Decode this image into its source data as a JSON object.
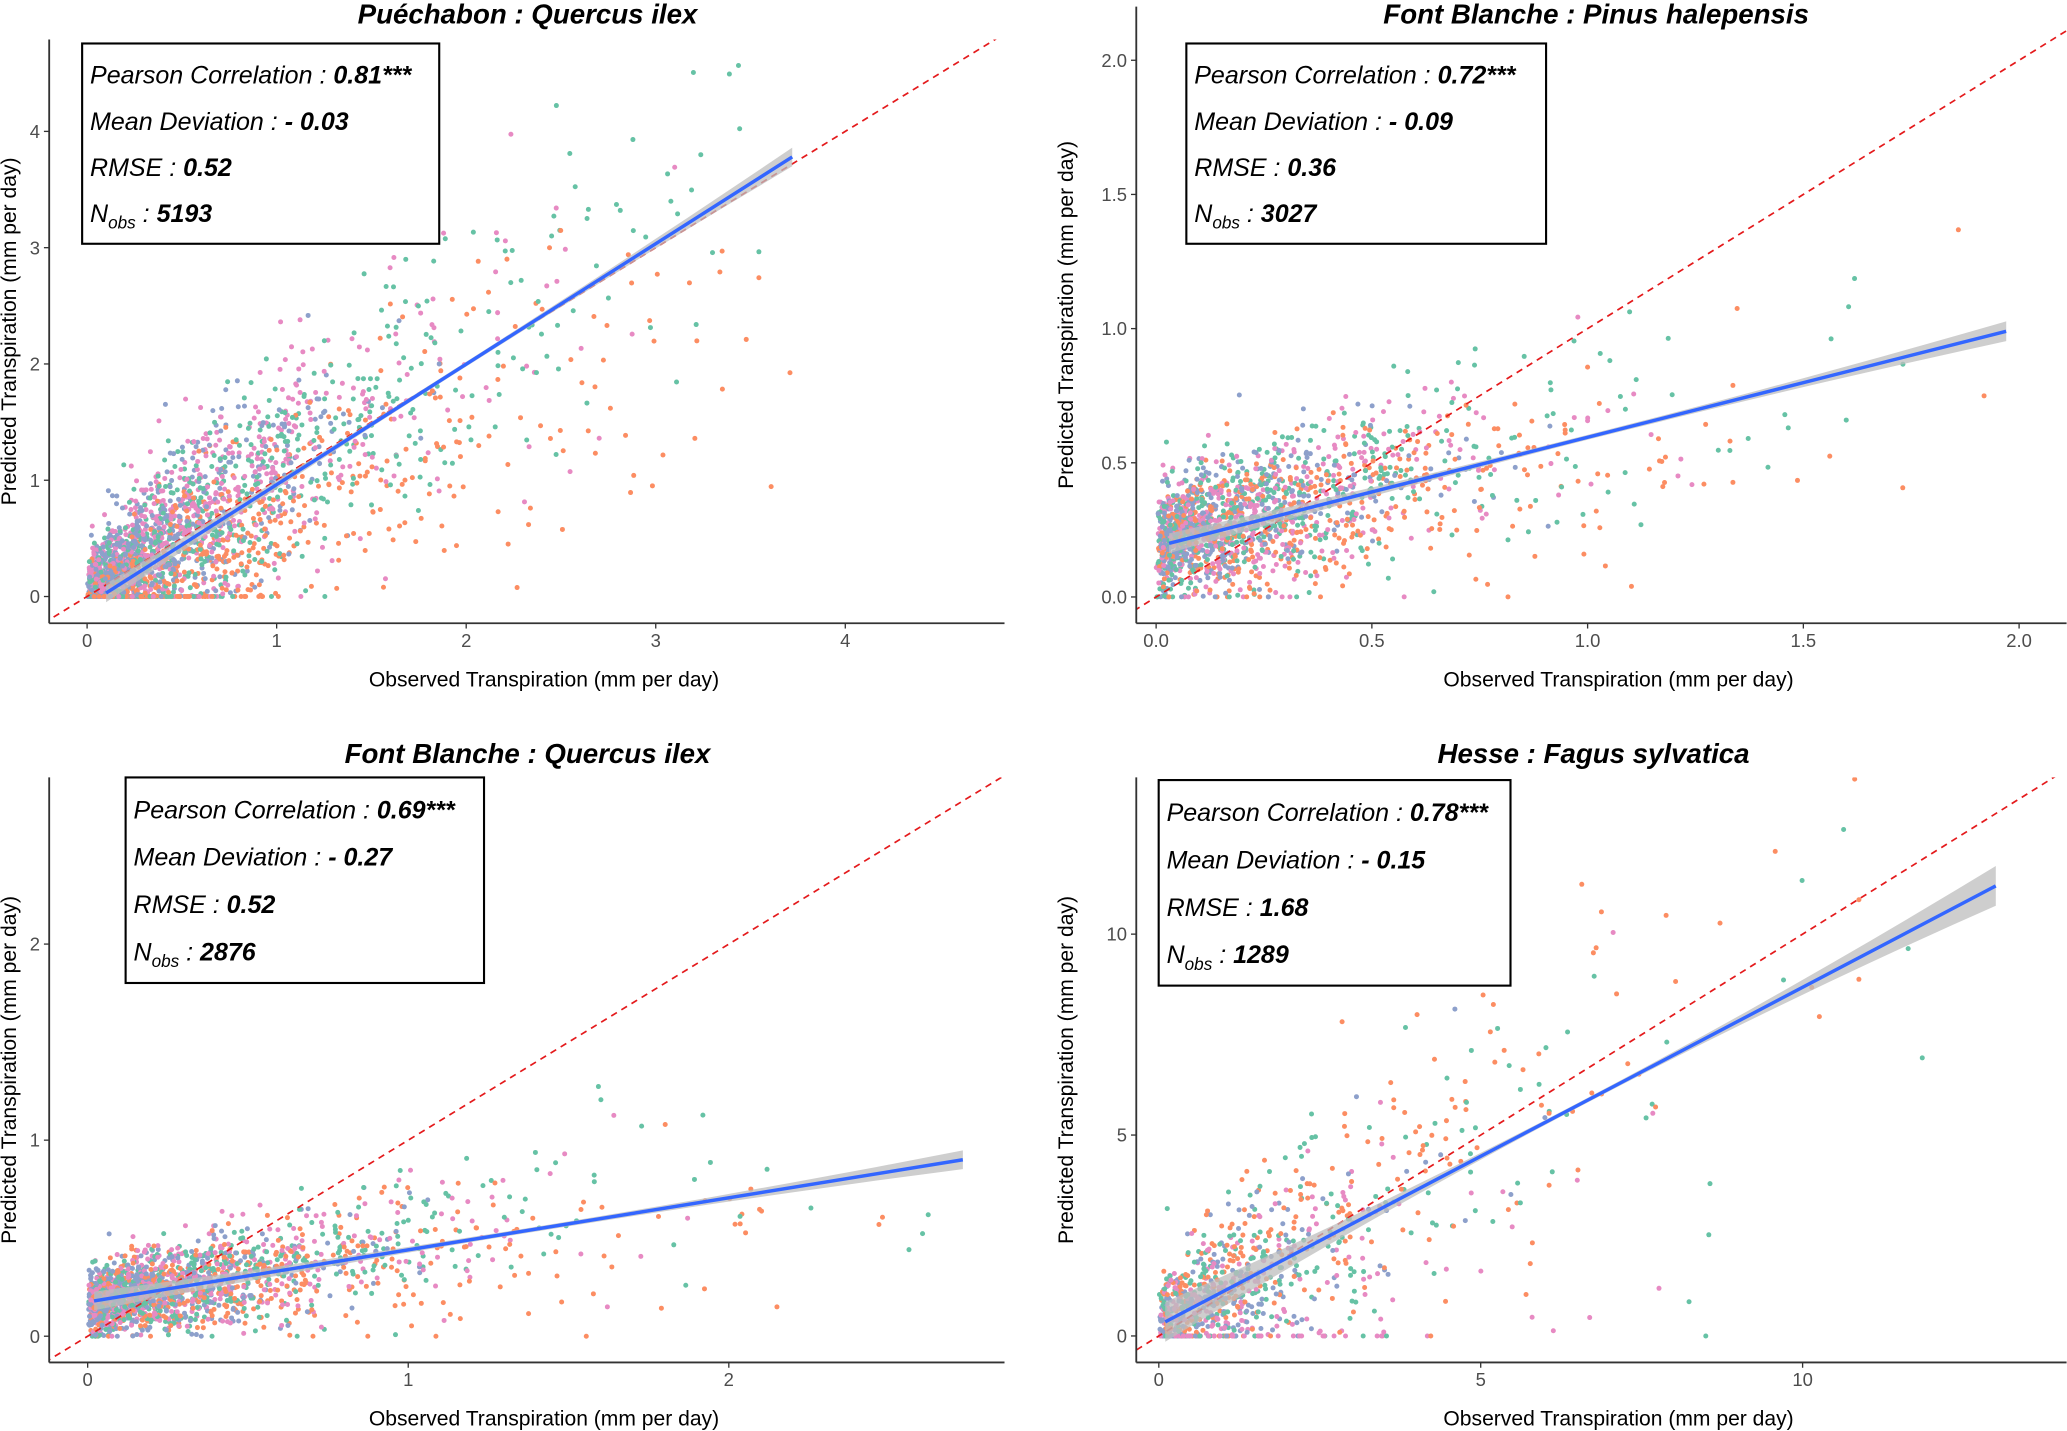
{
  "chart_data": [
    {
      "type": "scatter",
      "title": "Puéchabon : Quercus ilex",
      "xlabel": "Observed Transpiration (mm per day)",
      "ylabel": "Predicted Transpiration (mm per day)",
      "xlim": [
        -0.2,
        4.84
      ],
      "ylim": [
        -0.23,
        4.79
      ],
      "xticks": [
        "0",
        "1",
        "2",
        "3",
        "4"
      ],
      "xtick_values": [
        0,
        1,
        2,
        3,
        4
      ],
      "yticks": [
        "0",
        "1",
        "2",
        "3",
        "4"
      ],
      "ytick_values": [
        0,
        1,
        2,
        3,
        4
      ],
      "regression": {
        "x": [
          0.1,
          3.72
        ],
        "y": [
          0.03,
          3.78
        ]
      },
      "identity_line": true,
      "stats": {
        "pearson_label": "Pearson Correlation : ",
        "pearson": "0.81***",
        "md_label": "Mean Deviation : ",
        "md": "- 0.03",
        "rmse_label": "RMSE : ",
        "rmse": "0.52",
        "n_label": "N",
        "n_sub": "obs",
        "n_sep": " : ",
        "nobs": "5193"
      }
    },
    {
      "type": "scatter",
      "title": "Font Blanche : Pinus halepensis",
      "xlabel": "Observed Transpiration (mm per day)",
      "ylabel": "Predicted Transpiration (mm per day)",
      "xlim": [
        -0.046,
        2.11
      ],
      "ylim": [
        -0.098,
        2.2
      ],
      "xticks": [
        "0.0",
        "0.5",
        "1.0",
        "1.5",
        "2.0"
      ],
      "xtick_values": [
        0,
        0.5,
        1,
        1.5,
        2
      ],
      "yticks": [
        "0.0",
        "0.5",
        "1.0",
        "1.5",
        "2.0"
      ],
      "ytick_values": [
        0,
        0.5,
        1,
        1.5,
        2
      ],
      "regression": {
        "x": [
          0.03,
          1.97
        ],
        "y": [
          0.2,
          0.99
        ]
      },
      "identity_line": true,
      "stats": {
        "pearson_label": "Pearson Correlation : ",
        "pearson": "0.72***",
        "md_label": "Mean Deviation : ",
        "md": "- 0.09",
        "rmse_label": "RMSE : ",
        "rmse": "0.36",
        "n_label": "N",
        "n_sub": "obs",
        "n_sep": " : ",
        "nobs": "3027"
      }
    },
    {
      "type": "scatter",
      "title": "Font Blanche : Quercus ilex",
      "xlabel": "Observed Transpiration (mm per day)",
      "ylabel": "Predicted Transpiration (mm per day)",
      "xlim": [
        -0.12,
        2.86
      ],
      "ylim": [
        -0.134,
        2.85
      ],
      "xticks": [
        "0",
        "1",
        "2"
      ],
      "xtick_values": [
        0,
        1,
        2
      ],
      "yticks": [
        "0",
        "1",
        "2"
      ],
      "ytick_values": [
        0,
        1,
        2
      ],
      "regression": {
        "x": [
          0.02,
          2.73
        ],
        "y": [
          0.18,
          0.9
        ]
      },
      "identity_line": true,
      "stats": {
        "pearson_label": "Pearson Correlation : ",
        "pearson": "0.69***",
        "md_label": "Mean Deviation : ",
        "md": "- 0.27",
        "rmse_label": "RMSE : ",
        "rmse": "0.52",
        "n_label": "N",
        "n_sub": "obs",
        "n_sep": " : ",
        "nobs": "2876"
      }
    },
    {
      "type": "scatter",
      "title": "Hesse : Fagus sylvatica",
      "xlabel": "Observed Transpiration (mm per day)",
      "ylabel": "Predicted Transpiration (mm per day)",
      "xlim": [
        -0.35,
        14.1
      ],
      "ylim": [
        -0.66,
        13.9
      ],
      "xticks": [
        "0",
        "5",
        "10"
      ],
      "xtick_values": [
        0,
        5,
        10
      ],
      "yticks": [
        "0",
        "5",
        "10"
      ],
      "ytick_values": [
        0,
        5,
        10
      ],
      "regression": {
        "x": [
          0.1,
          13.0
        ],
        "y": [
          0.35,
          11.2
        ]
      },
      "identity_line": true,
      "stats": {
        "pearson_label": "Pearson Correlation : ",
        "pearson": "0.78***",
        "md_label": "Mean Deviation : ",
        "md": "- 0.15",
        "rmse_label": "RMSE : ",
        "rmse": "1.68",
        "n_label": "N",
        "n_sub": "obs",
        "n_sep": " : ",
        "nobs": "1289"
      }
    }
  ],
  "colors": {
    "point_groups": [
      "#FC8D62",
      "#66C2A5",
      "#8DA0CB",
      "#E78AC3"
    ],
    "regression_line": "#3366FF",
    "confidence_band": "#BEBEBE",
    "identity_line": "#E41A1C"
  }
}
